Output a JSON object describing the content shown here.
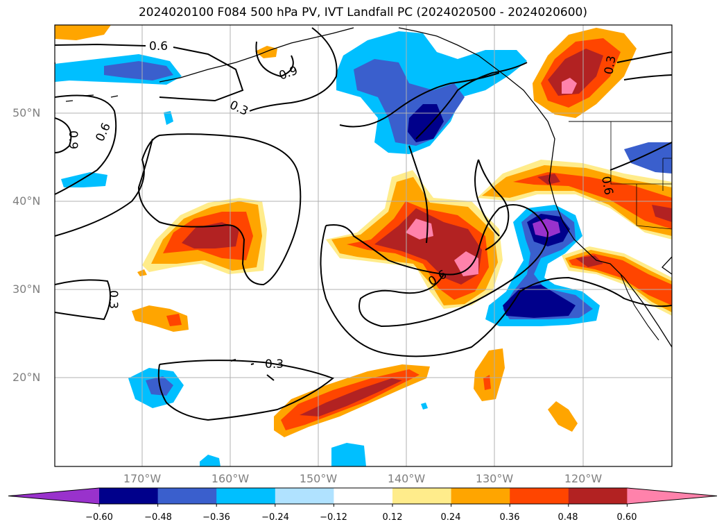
{
  "title": "2024020100 F084 500 hPa PV, IVT Landfall PC (2024020500 - 2024020600)",
  "lat_labels": [
    "50°N",
    "40°N",
    "30°N",
    "20°N"
  ],
  "lon_labels": [
    "170°W",
    "160°W",
    "150°W",
    "140°W",
    "130°W",
    "120°W"
  ],
  "contour_labels": [
    "0.6",
    "0.9",
    "0.3",
    "0.9",
    "0.6",
    "0.3",
    "0.6",
    "0.3",
    "0.3",
    "0.6"
  ],
  "colorbar": {
    "tick_labels": [
      "−0.60",
      "−0.48",
      "−0.36",
      "−0.24",
      "−0.12",
      "0.12",
      "0.24",
      "0.36",
      "0.48",
      "0.60"
    ],
    "colors": [
      "#9932cc",
      "#00008b",
      "#3a5fcd",
      "#00bfff",
      "#b0e2ff",
      "#ffffff",
      "#ffec8b",
      "#ffa500",
      "#ff4500",
      "#b22222",
      "#ff82ab"
    ]
  }
}
